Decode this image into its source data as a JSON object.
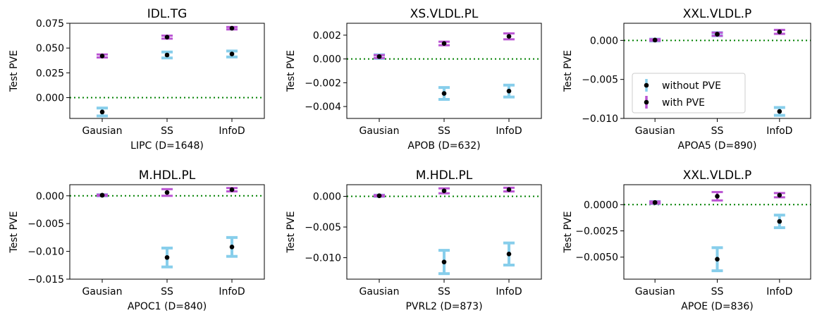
{
  "colors": {
    "without_pve": "#87CEEB",
    "with_pve": "#BA55D3",
    "zero_line": "#008000",
    "marker": "#000000"
  },
  "chart_data": [
    {
      "type": "errorbar",
      "title": "IDL.TG",
      "xlabel": "LIPC (D=1648)",
      "ylabel": "Test PVE",
      "categories": [
        "Gausian",
        "SS",
        "InfoD"
      ],
      "ylim": [
        -0.021,
        0.075
      ],
      "yticks": [
        0.0,
        0.025,
        0.05,
        0.075
      ],
      "ytick_labels": [
        "0.000",
        "0.025",
        "0.050",
        "0.075"
      ],
      "zero_line": true,
      "legend": null,
      "series": [
        {
          "name": "without PVE",
          "values": [
            -0.0145,
            0.043,
            0.044
          ],
          "err": [
            0.004,
            0.003,
            0.003
          ]
        },
        {
          "name": "with PVE",
          "values": [
            0.042,
            0.061,
            0.07
          ],
          "err": [
            0.0015,
            0.0015,
            0.0012
          ]
        }
      ]
    },
    {
      "type": "errorbar",
      "title": "XS.VLDL.PL",
      "xlabel": "APOB (D=632)",
      "ylabel": "Test PVE",
      "categories": [
        "Gausian",
        "SS",
        "InfoD"
      ],
      "ylim": [
        -0.005,
        0.003
      ],
      "yticks": [
        -0.004,
        -0.002,
        0.0,
        0.002
      ],
      "ytick_labels": [
        "−0.004",
        "−0.002",
        "0.000",
        "0.002"
      ],
      "zero_line": true,
      "legend": null,
      "series": [
        {
          "name": "without PVE",
          "values": [
            0.0002,
            -0.0029,
            -0.0027
          ],
          "err": [
            0.00015,
            0.0005,
            0.0005
          ]
        },
        {
          "name": "with PVE",
          "values": [
            0.0002,
            0.0013,
            0.0019
          ],
          "err": [
            0.00012,
            0.00015,
            0.00025
          ]
        }
      ]
    },
    {
      "type": "errorbar",
      "title": "XXL.VLDL.P",
      "xlabel": "APOA5 (D=890)",
      "ylabel": "Test PVE",
      "categories": [
        "Gausian",
        "SS",
        "InfoD"
      ],
      "ylim": [
        -0.01,
        0.0022
      ],
      "yticks": [
        -0.01,
        -0.005,
        0.0
      ],
      "ytick_labels": [
        "−0.010",
        "−0.005",
        "0.000"
      ],
      "zero_line": true,
      "legend": {
        "position": "lower-left",
        "entries": [
          "without PVE",
          "with PVE"
        ]
      },
      "series": [
        {
          "name": "without PVE",
          "values": [
            5e-05,
            0.0008,
            -0.0091
          ],
          "err": [
            0.00012,
            0.0002,
            0.0005
          ]
        },
        {
          "name": "with PVE",
          "values": [
            5e-05,
            0.0008,
            0.0011
          ],
          "err": [
            0.0001,
            0.0002,
            0.00025
          ]
        }
      ]
    },
    {
      "type": "errorbar",
      "title": "M.HDL.PL",
      "xlabel": "APOC1 (D=840)",
      "ylabel": "Test PVE",
      "categories": [
        "Gausian",
        "SS",
        "InfoD"
      ],
      "ylim": [
        -0.015,
        0.002
      ],
      "yticks": [
        -0.015,
        -0.01,
        -0.005,
        0.0
      ],
      "ytick_labels": [
        "−0.015",
        "−0.010",
        "−0.005",
        "0.000"
      ],
      "zero_line": true,
      "legend": null,
      "series": [
        {
          "name": "without PVE",
          "values": [
            0.0001,
            -0.0111,
            -0.0092
          ],
          "err": [
            0.0001,
            0.0017,
            0.0017
          ]
        },
        {
          "name": "with PVE",
          "values": [
            0.0001,
            0.0006,
            0.0011
          ],
          "err": [
            0.0001,
            0.0006,
            0.0003
          ]
        }
      ]
    },
    {
      "type": "errorbar",
      "title": "M.HDL.PL",
      "xlabel": "PVRL2 (D=873)",
      "ylabel": "Test PVE",
      "categories": [
        "Gausian",
        "SS",
        "InfoD"
      ],
      "ylim": [
        -0.0135,
        0.0019
      ],
      "yticks": [
        -0.01,
        -0.005,
        0.0
      ],
      "ytick_labels": [
        "−0.010",
        "−0.005",
        "0.000"
      ],
      "zero_line": true,
      "legend": null,
      "series": [
        {
          "name": "without PVE",
          "values": [
            0.0001,
            -0.0107,
            -0.0094
          ],
          "err": [
            0.0001,
            0.0019,
            0.0018
          ]
        },
        {
          "name": "with PVE",
          "values": [
            0.0001,
            0.0009,
            0.0011
          ],
          "err": [
            0.0001,
            0.0004,
            0.0003
          ]
        }
      ]
    },
    {
      "type": "errorbar",
      "title": "XXL.VLDL.P",
      "xlabel": "APOE (D=836)",
      "ylabel": "Test PVE",
      "categories": [
        "Gausian",
        "SS",
        "InfoD"
      ],
      "ylim": [
        -0.0071,
        0.0019
      ],
      "yticks": [
        -0.005,
        -0.0025,
        0.0
      ],
      "ytick_labels": [
        "−0.0050",
        "−0.0025",
        "0.0000"
      ],
      "zero_line": true,
      "legend": null,
      "series": [
        {
          "name": "without PVE",
          "values": [
            0.0002,
            -0.0052,
            -0.0016
          ],
          "err": [
            0.0001,
            0.0011,
            0.0006
          ]
        },
        {
          "name": "with PVE",
          "values": [
            0.0002,
            0.0008,
            0.0009
          ],
          "err": [
            0.0001,
            0.0004,
            0.0002
          ]
        }
      ]
    }
  ]
}
